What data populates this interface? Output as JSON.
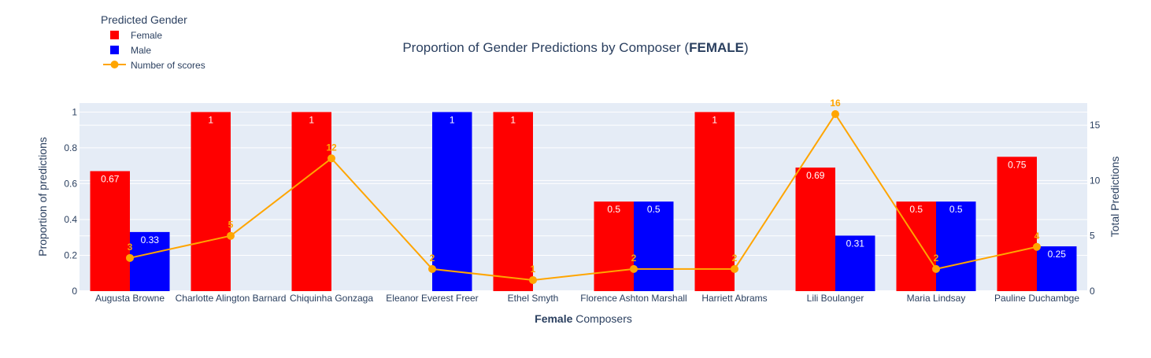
{
  "chart_data": {
    "type": "bar",
    "title_prefix": "Proportion of Gender Predictions by Composer (",
    "title_bold": "FEMALE",
    "title_suffix": ")",
    "xlabel_bold": "Female",
    "xlabel_rest": " Composers",
    "ylabel": "Proportion of predictions",
    "y2label": "Total Predictions",
    "legend_title": "Predicted Gender",
    "legend_position": "top-left",
    "grid": true,
    "ylim": [
      0,
      1.05
    ],
    "y2lim": [
      0,
      17
    ],
    "y_ticks": [
      "0",
      "0.2",
      "0.4",
      "0.6",
      "0.8",
      "1"
    ],
    "y2_ticks": [
      "0",
      "5",
      "10",
      "15"
    ],
    "categories": [
      "Augusta Browne",
      "Charlotte Alington Barnard",
      "Chiquinha Gonzaga",
      "Eleanor Everest Freer",
      "Ethel Smyth",
      "Florence Ashton Marshall",
      "Harriett Abrams",
      "Lili Boulanger",
      "Maria Lindsay",
      "Pauline Duchambge"
    ],
    "series": [
      {
        "name": "Female",
        "kind": "bar",
        "color": "#ff0000",
        "values": [
          0.67,
          1,
          1,
          null,
          1,
          0.5,
          1,
          0.69,
          0.5,
          0.75
        ],
        "labels": [
          "0.67",
          "1",
          "1",
          "",
          "1",
          "0.5",
          "1",
          "0.69",
          "0.5",
          "0.75"
        ]
      },
      {
        "name": "Male",
        "kind": "bar",
        "color": "#0000ff",
        "values": [
          0.33,
          null,
          null,
          1,
          null,
          0.5,
          null,
          0.31,
          0.5,
          0.25
        ],
        "labels": [
          "0.33",
          "",
          "",
          "1",
          "",
          "0.5",
          "",
          "0.31",
          "0.5",
          "0.25"
        ]
      },
      {
        "name": "Number of scores",
        "kind": "line",
        "axis": "y2",
        "color": "#ffa500",
        "values": [
          3,
          5,
          12,
          2,
          1,
          2,
          2,
          16,
          2,
          4
        ],
        "labels": [
          "3",
          "5",
          "12",
          "2",
          "1",
          "2",
          "2",
          "16",
          "2",
          "4"
        ]
      }
    ],
    "plot_bg": "#e5ecf6",
    "text_color": "#2a3f5f"
  }
}
